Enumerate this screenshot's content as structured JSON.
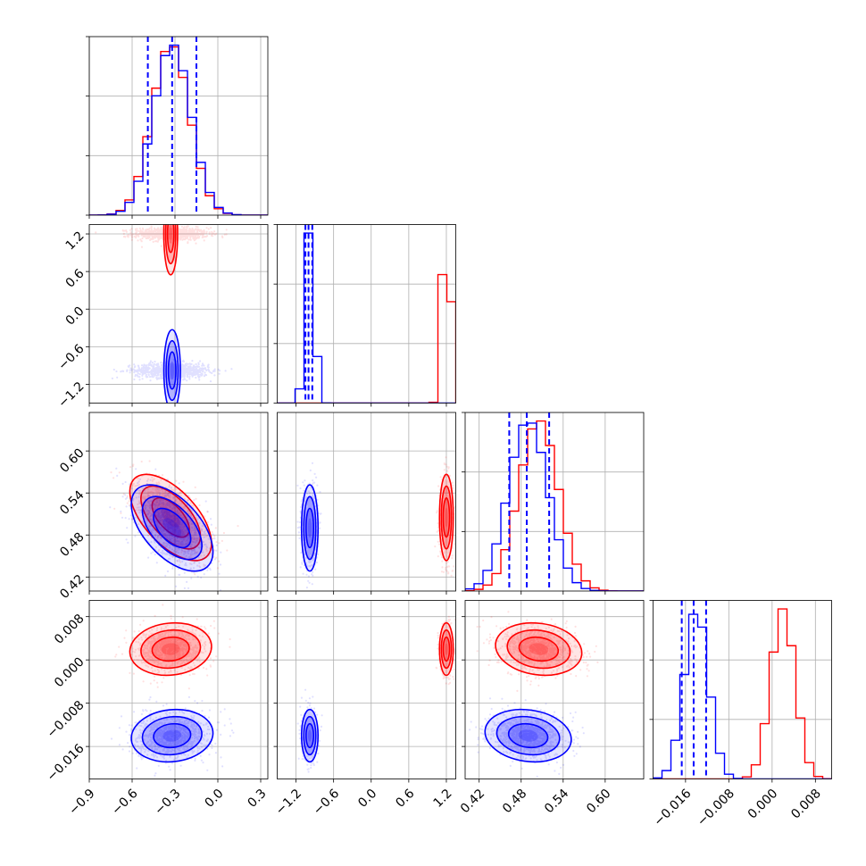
{
  "chart_data": {
    "type": "corner",
    "grid": true,
    "colors": {
      "series_a": "#ff0000",
      "series_b": "#0000ff",
      "grid": "#b0b0b0",
      "frame": "#000000"
    },
    "parameters": [
      {
        "range": [
          -0.9,
          0.35
        ],
        "ticks": [
          -0.9,
          -0.6,
          -0.3,
          0.0,
          0.3
        ],
        "tick_labels": [
          "−0.9",
          "−0.6",
          "−0.3",
          "0.0",
          "0.3"
        ]
      },
      {
        "range": [
          -1.5,
          1.35
        ],
        "ticks": [
          -1.2,
          -0.6,
          0.0,
          0.6,
          1.2
        ],
        "tick_labels": [
          "−1.2",
          "−0.6",
          "0.0",
          "0.6",
          "1.2"
        ]
      },
      {
        "range": [
          0.4,
          0.655
        ],
        "ticks": [
          0.42,
          0.48,
          0.54,
          0.6
        ],
        "tick_labels": [
          "0.42",
          "0.48",
          "0.54",
          "0.60"
        ]
      },
      {
        "range": [
          -0.022,
          0.011
        ],
        "ticks": [
          -0.016,
          -0.008,
          0.0,
          0.008
        ],
        "tick_labels": [
          "−0.016",
          "−0.008",
          "0.000",
          "0.008"
        ]
      }
    ],
    "series": [
      {
        "color": "#ff0000",
        "mean": [
          -0.33,
          1.2,
          0.505,
          0.002
        ],
        "sd": [
          0.13,
          0.05,
          0.028,
          0.0022
        ]
      },
      {
        "color": "#0000ff",
        "mean": [
          -0.32,
          -0.98,
          0.49,
          -0.014
        ],
        "sd": [
          0.13,
          0.06,
          0.028,
          0.0022
        ]
      }
    ],
    "quantile_lines": [
      {
        "color": "#0000ff",
        "values": [
          -0.49,
          -0.32,
          -0.15
        ]
      },
      {
        "color": "#0000ff",
        "values": [
          -1.05,
          -1.0,
          -0.94
        ]
      },
      {
        "color": "#0000ff",
        "values": [
          0.463,
          0.488,
          0.52
        ]
      },
      {
        "color": "#0000ff",
        "values": [
          -0.0167,
          -0.0145,
          -0.0122
        ]
      }
    ],
    "correlations": {
      "2-0": {
        "series_a": -0.6,
        "series_b": -0.55
      },
      "3-0": {
        "series_a": 0.1,
        "series_b": 0.1
      },
      "2-1": {
        "series_a": 0.0,
        "series_b": 0.0
      },
      "3-1": {
        "series_a": 0.0,
        "series_b": 0.0
      },
      "3-2": {
        "series_a": -0.15,
        "series_b": -0.15
      }
    }
  }
}
